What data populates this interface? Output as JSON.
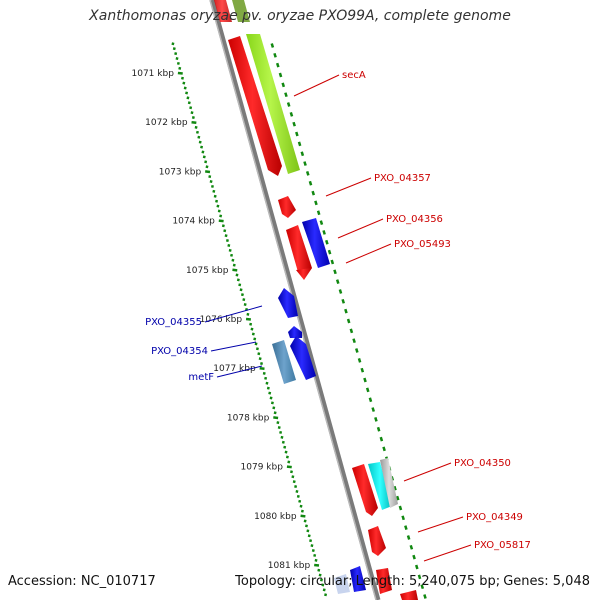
{
  "title": "Xanthomonas oryzae pv. oryzae PXO99A, complete genome",
  "footer": {
    "accession": "Accession: NC_010717",
    "topology": "Topology: circular",
    "length": "Length: 5,240,075 bp",
    "genes": "Genes: 5,048"
  },
  "ticks": [
    {
      "label": "1071 kbp",
      "kbp": 1071
    },
    {
      "label": "1072 kbp",
      "kbp": 1072
    },
    {
      "label": "1073 kbp",
      "kbp": 1073
    },
    {
      "label": "1074 kbp",
      "kbp": 1074
    },
    {
      "label": "1075 kbp",
      "kbp": 1075
    },
    {
      "label": "1076 kbp",
      "kbp": 1076
    },
    {
      "label": "1077 kbp",
      "kbp": 1077
    },
    {
      "label": "1078 kbp",
      "kbp": 1078
    },
    {
      "label": "1079 kbp",
      "kbp": 1079
    },
    {
      "label": "1080 kbp",
      "kbp": 1080
    },
    {
      "label": "1081 kbp",
      "kbp": 1081
    }
  ],
  "gene_labels": [
    {
      "name": "secA",
      "strand": "forward",
      "color": "#cc0000"
    },
    {
      "name": "PXO_04357",
      "strand": "forward",
      "color": "#cc0000"
    },
    {
      "name": "PXO_04356",
      "strand": "forward",
      "color": "#cc0000"
    },
    {
      "name": "PXO_05493",
      "strand": "forward",
      "color": "#cc0000"
    },
    {
      "name": "PXO_04355",
      "strand": "reverse",
      "color": "#0000aa"
    },
    {
      "name": "PXO_04354",
      "strand": "reverse",
      "color": "#0000aa"
    },
    {
      "name": "metF",
      "strand": "reverse",
      "color": "#0000aa"
    },
    {
      "name": "PXO_04350",
      "strand": "forward",
      "color": "#cc0000"
    },
    {
      "name": "PXO_04349",
      "strand": "forward",
      "color": "#cc0000"
    },
    {
      "name": "PXO_05817",
      "strand": "forward",
      "color": "#cc0000"
    }
  ],
  "colors": {
    "forward_cds": "#ff0000",
    "reverse_cds": "#0000ee",
    "rna": "#99ee22",
    "trna": "#00e5e5",
    "other": "#bbbbbb",
    "steel": "#4f86b0",
    "backbone": "#888888",
    "tick_dots": "#118811"
  }
}
